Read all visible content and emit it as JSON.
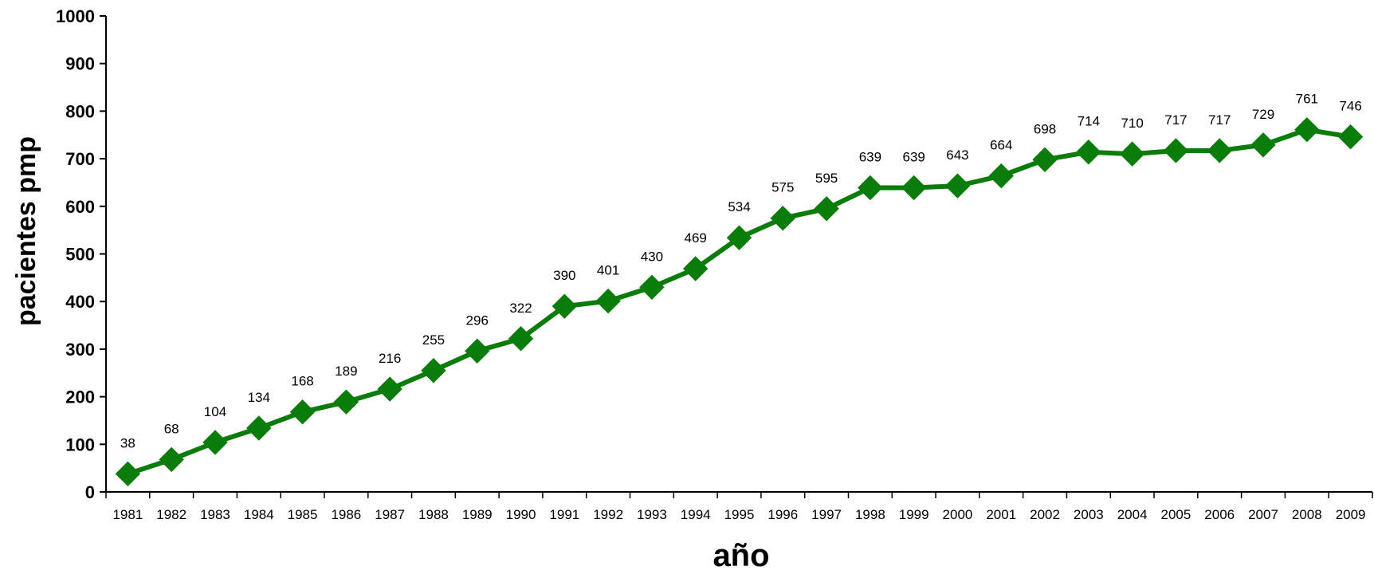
{
  "chart_data": {
    "type": "line",
    "xlabel": "año",
    "ylabel": "pacientes pmp",
    "ylim": [
      0,
      1000
    ],
    "ytick_step": 100,
    "grid": false,
    "legend": "none",
    "categories": [
      "1981",
      "1982",
      "1983",
      "1984",
      "1985",
      "1986",
      "1987",
      "1988",
      "1989",
      "1990",
      "1991",
      "1992",
      "1993",
      "1994",
      "1995",
      "1996",
      "1997",
      "1998",
      "1999",
      "2000",
      "2001",
      "2002",
      "2003",
      "2004",
      "2005",
      "2006",
      "2007",
      "2008",
      "2009"
    ],
    "series": [
      {
        "color": "#0a7c0a",
        "marker": "diamond",
        "values": [
          38,
          68,
          104,
          134,
          168,
          189,
          216,
          255,
          296,
          322,
          390,
          401,
          430,
          469,
          534,
          575,
          595,
          639,
          639,
          643,
          664,
          698,
          714,
          710,
          717,
          717,
          729,
          761,
          746
        ]
      }
    ]
  }
}
